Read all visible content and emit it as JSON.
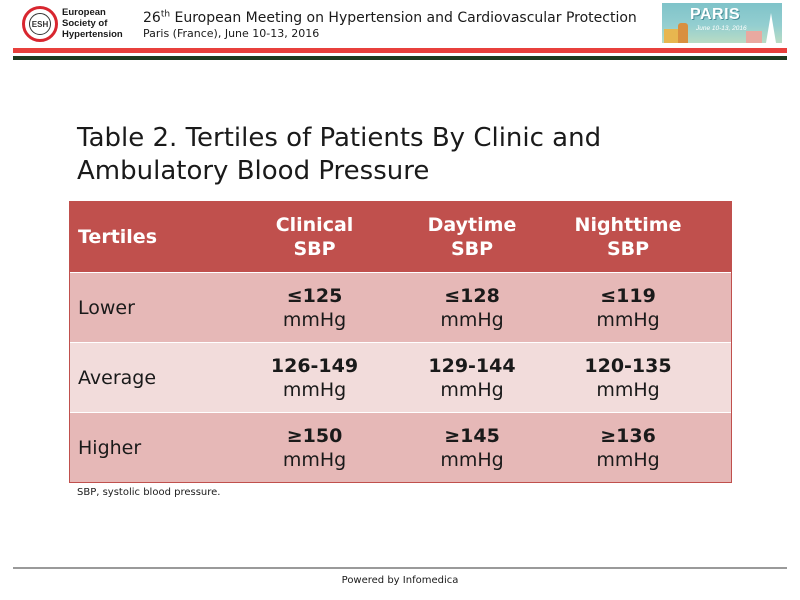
{
  "header": {
    "logo": {
      "badge": "ESH",
      "lines": [
        "European",
        "Society of",
        "Hypertension"
      ]
    },
    "meeting": {
      "ordinal_number": "26",
      "ordinal_suffix": "th",
      "title_rest": " European Meeting on Hypertension and Cardiovascular Protection",
      "subtitle": "Paris (France), June 10-13, 2016"
    },
    "banner": {
      "word": "PARIS",
      "date": "June 10-13, 2016"
    },
    "colors": {
      "accent_red": "#e8403c",
      "dark_green": "#1f3a1f"
    }
  },
  "slide": {
    "title": "Table 2. Tertiles of Patients By Clinic and Ambulatory Blood Pressure"
  },
  "table": {
    "header_color": "#c0504d",
    "odd_row_color": "#e6b8b7",
    "even_row_color": "#f2dcdb",
    "columns": [
      {
        "line1": "Tertiles",
        "line2": ""
      },
      {
        "line1": "Clinical",
        "line2": "SBP"
      },
      {
        "line1": "Daytime",
        "line2": "SBP"
      },
      {
        "line1": "Nighttime",
        "line2": "SBP"
      }
    ],
    "rows": [
      {
        "label": "Lower",
        "cells": [
          {
            "value": "≤125",
            "unit": "mmHg"
          },
          {
            "value": "≤128",
            "unit": "mmHg"
          },
          {
            "value": "≤119",
            "unit": "mmHg"
          }
        ]
      },
      {
        "label": "Average",
        "cells": [
          {
            "value": "126-149",
            "unit": "mmHg"
          },
          {
            "value": "129-144",
            "unit": "mmHg"
          },
          {
            "value": "120-135",
            "unit": "mmHg"
          }
        ]
      },
      {
        "label": "Higher",
        "cells": [
          {
            "value": "≥150",
            "unit": "mmHg"
          },
          {
            "value": "≥145",
            "unit": "mmHg"
          },
          {
            "value": "≥136",
            "unit": "mmHg"
          }
        ]
      }
    ]
  },
  "footnote": "SBP, systolic blood pressure.",
  "footer": {
    "powered_by": "Powered by Infomedica"
  }
}
